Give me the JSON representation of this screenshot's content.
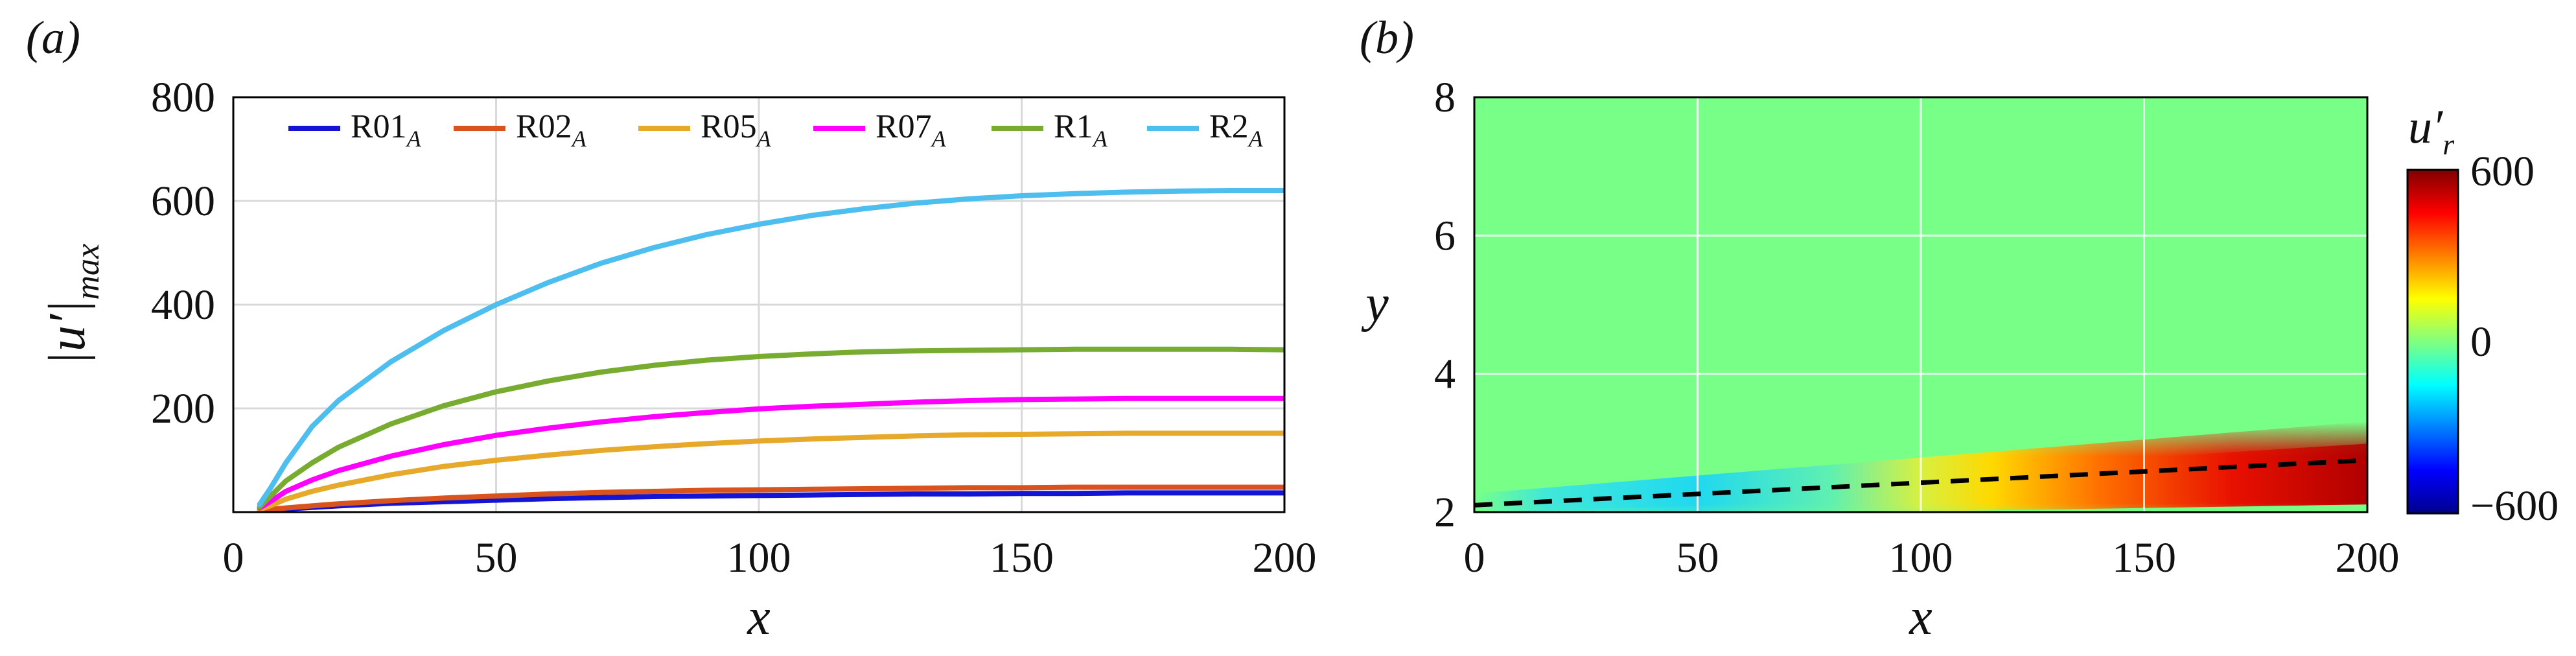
{
  "chart_data": [
    {
      "type": "line",
      "panel_label": "(a)",
      "xlabel": "x",
      "ylabel": "|u′|",
      "ylabel_sub": "max",
      "xlim": [
        0,
        200
      ],
      "ylim": [
        0,
        800
      ],
      "xticks": [
        "0",
        "50",
        "100",
        "150",
        "200"
      ],
      "yticks": [
        "200",
        "400",
        "600",
        "800"
      ],
      "grid": true,
      "legend_position": "top",
      "x": [
        5,
        7,
        10,
        15,
        20,
        30,
        40,
        50,
        60,
        70,
        80,
        90,
        100,
        110,
        120,
        130,
        140,
        150,
        160,
        170,
        180,
        190,
        200
      ],
      "series": [
        {
          "name": "R01",
          "name_sub": "A",
          "color": "#1414d4",
          "values": [
            2,
            3,
            6,
            9,
            12,
            17,
            20,
            23,
            26,
            28,
            30,
            31,
            32,
            33,
            34,
            35,
            35,
            36,
            36,
            37,
            37,
            37,
            37
          ]
        },
        {
          "name": "R02",
          "name_sub": "A",
          "color": "#d9531e",
          "values": [
            3,
            5,
            8,
            12,
            16,
            22,
            27,
            31,
            35,
            38,
            40,
            42,
            43,
            44,
            45,
            46,
            47,
            47,
            48,
            48,
            48,
            48,
            48
          ]
        },
        {
          "name": "R05",
          "name_sub": "A",
          "color": "#e6a92a",
          "values": [
            5,
            12,
            25,
            40,
            52,
            72,
            88,
            100,
            110,
            119,
            126,
            132,
            137,
            141,
            144,
            147,
            149,
            150,
            151,
            152,
            152,
            152,
            152
          ]
        },
        {
          "name": "R07",
          "name_sub": "A",
          "color": "#ff00ff",
          "values": [
            8,
            20,
            40,
            62,
            80,
            108,
            130,
            148,
            162,
            174,
            184,
            192,
            199,
            204,
            208,
            212,
            215,
            217,
            218,
            219,
            219,
            219,
            219
          ]
        },
        {
          "name": "R1",
          "name_sub": "A",
          "color": "#77ac30",
          "values": [
            10,
            30,
            60,
            95,
            125,
            170,
            205,
            232,
            253,
            270,
            283,
            293,
            300,
            305,
            309,
            311,
            312,
            313,
            314,
            314,
            314,
            314,
            313
          ]
        },
        {
          "name": "R2",
          "name_sub": "A",
          "color": "#4dbeee",
          "values": [
            15,
            45,
            95,
            165,
            215,
            290,
            350,
            400,
            443,
            480,
            510,
            535,
            555,
            572,
            585,
            596,
            604,
            610,
            614,
            617,
            619,
            620,
            620
          ]
        }
      ]
    },
    {
      "type": "heatmap",
      "panel_label": "(b)",
      "xlabel": "x",
      "ylabel": "y",
      "xlim": [
        0,
        200
      ],
      "ylim": [
        2,
        8
      ],
      "xticks": [
        "0",
        "50",
        "100",
        "150",
        "200"
      ],
      "yticks": [
        "2",
        "4",
        "6",
        "8"
      ],
      "grid": true,
      "colorbar": {
        "label": "u′",
        "label_sub": "r",
        "range": [
          -600,
          600
        ],
        "ticks": [
          "600",
          "0",
          "−600"
        ],
        "colors": [
          "#00008f",
          "#0000ff",
          "#0080ff",
          "#00ffff",
          "#80ff80",
          "#ffff00",
          "#ff8000",
          "#ff0000",
          "#800000"
        ]
      },
      "background_color": "#78ff88",
      "dashed_line": {
        "x": [
          0,
          200
        ],
        "y": [
          2.1,
          2.75
        ],
        "color": "#000000"
      },
      "wave_band": {
        "center_y": [
          2.1,
          2.75
        ],
        "amplitude_by_x": {
          "x": [
            0,
            20,
            50,
            80,
            100,
            120,
            150,
            180,
            200
          ],
          "u": [
            -40,
            -120,
            -200,
            -80,
            120,
            300,
            480,
            580,
            600
          ]
        }
      }
    }
  ]
}
